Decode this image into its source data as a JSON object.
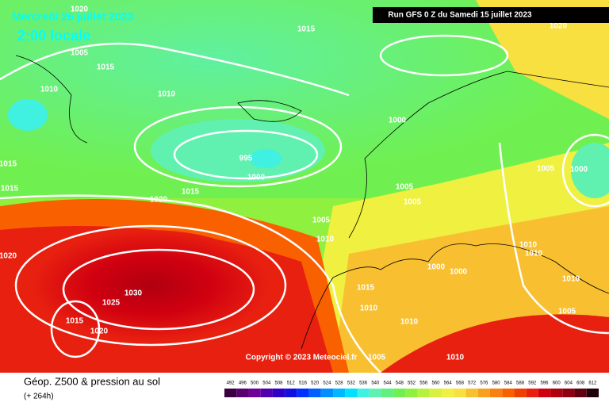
{
  "header": {
    "date": "Mercredi 26 juillet 2023",
    "time": "2:00 locale",
    "run": "Run GFS 0 Z du Samedi 15 juillet 2023"
  },
  "isobar_labels": [
    "1020",
    "1015",
    "1005",
    "1015",
    "1010",
    "1010",
    "1000",
    "995",
    "1000",
    "1005",
    "1000",
    "1015",
    "1015",
    "1015",
    "1020",
    "1005",
    "1005",
    "1005",
    "1010",
    "1010",
    "1010",
    "1020",
    "1000",
    "1000",
    "1010",
    "1030",
    "1025",
    "1015",
    "1010",
    "1015",
    "1020",
    "1010",
    "1005",
    "1005",
    "1010",
    "1020"
  ],
  "copyright": "Copyright © 2023 Meteociel.fr",
  "footer": {
    "title": "Géop. Z500 & pression au sol",
    "subtitle": "(+ 264h)"
  },
  "legend": {
    "values": [
      492,
      496,
      500,
      504,
      508,
      512,
      516,
      520,
      524,
      528,
      532,
      536,
      540,
      544,
      548,
      552,
      556,
      560,
      564,
      568,
      572,
      576,
      580,
      584,
      588,
      592,
      596,
      600,
      604,
      608,
      612
    ],
    "colors": [
      "#3a0040",
      "#5a0070",
      "#70009a",
      "#5000b0",
      "#3000c8",
      "#1010e0",
      "#0030ff",
      "#0060ff",
      "#0090ff",
      "#00b8ff",
      "#00e0ff",
      "#40f0e0",
      "#60f0b0",
      "#60f080",
      "#70f050",
      "#90f040",
      "#b8f040",
      "#d8f040",
      "#f0f040",
      "#f8e040",
      "#f8c030",
      "#f8a020",
      "#f88010",
      "#f86000",
      "#f04000",
      "#e82010",
      "#d00010",
      "#b00010",
      "#900010",
      "#600010",
      "#200008"
    ]
  }
}
